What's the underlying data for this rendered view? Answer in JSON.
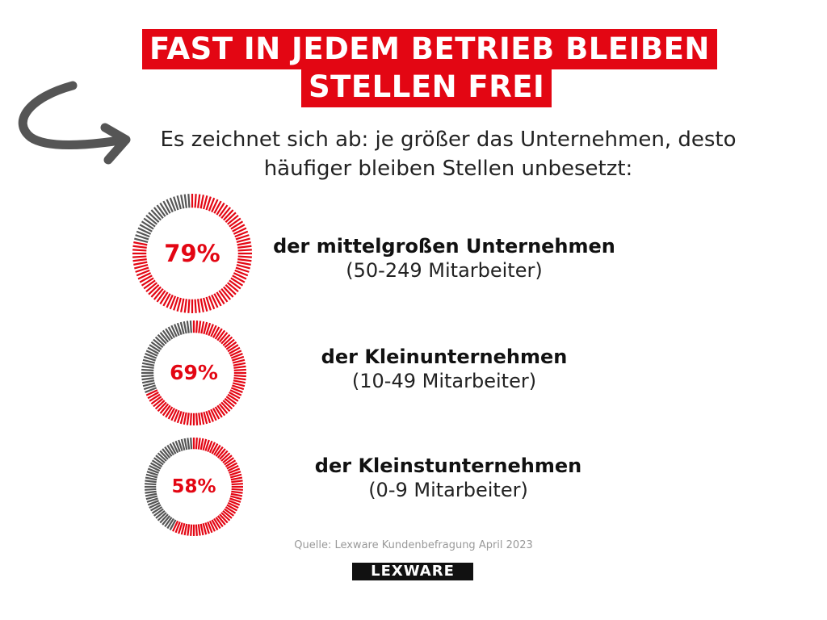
{
  "header": {
    "title_line1": "FAST IN JEDEM BETRIEB BLEIBEN",
    "title_line2": "STELLEN FREI",
    "subtitle_line1": "Es zeichnet sich ab: je größer das Unternehmen, desto",
    "subtitle_line2": "häufiger bleiben Stellen unbesetzt:"
  },
  "colors": {
    "accent": "#e30613",
    "remainder": "#555555",
    "text": "#111111"
  },
  "chart_data": {
    "type": "pie",
    "title": "Es zeichnet sich ab: je größer das Unternehmen, desto häufiger bleiben Stellen unbesetzt:",
    "unit": "%",
    "series": [
      {
        "name": "der mittelgroßen Unternehmen",
        "detail": "(50-249 Mitarbeiter)",
        "value": 79,
        "label": "79%"
      },
      {
        "name": "der Kleinunternehmen",
        "detail": "(10-49 Mitarbeiter)",
        "value": 69,
        "label": "69%"
      },
      {
        "name": "der Kleinstunternehmen",
        "detail": "(0-9 Mitarbeiter)",
        "value": 58,
        "label": "58%"
      }
    ]
  },
  "footer": {
    "source": "Quelle: Lexware Kundenbefragung April 2023",
    "logo_text": "LEXWARE"
  }
}
